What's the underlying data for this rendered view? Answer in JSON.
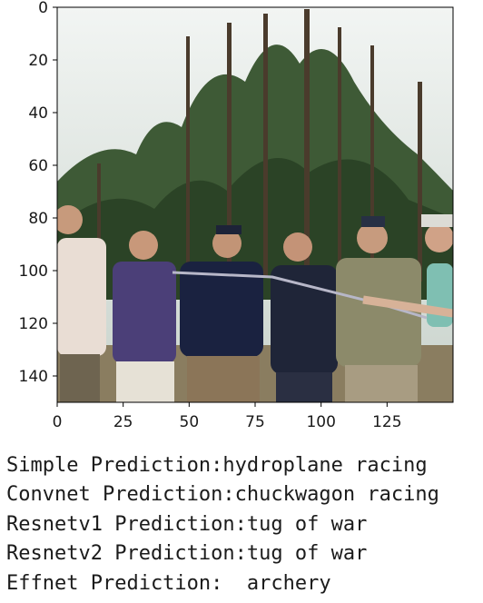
{
  "chart_data": {
    "type": "image",
    "title": "",
    "xlabel": "",
    "ylabel": "",
    "xlim": [
      0,
      150
    ],
    "ylim": [
      150,
      0
    ],
    "xticks": [
      0,
      25,
      50,
      75,
      100,
      125
    ],
    "yticks": [
      0,
      20,
      40,
      60,
      80,
      100,
      120,
      140
    ],
    "image_description_colors": {
      "sky": "#dfe6e3",
      "trees": "#2f4a2a",
      "ground": "#8a7d60"
    }
  },
  "predictions": [
    {
      "label": "Simple Prediction:",
      "value": "hydroplane racing"
    },
    {
      "label": "Convnet Prediction:",
      "value": "chuckwagon racing"
    },
    {
      "label": "Resnetv1 Prediction:",
      "value": "tug of war"
    },
    {
      "label": "Resnetv2 Prediction:",
      "value": "tug of war"
    },
    {
      "label": "Effnet Prediction:  ",
      "value": "archery"
    }
  ]
}
